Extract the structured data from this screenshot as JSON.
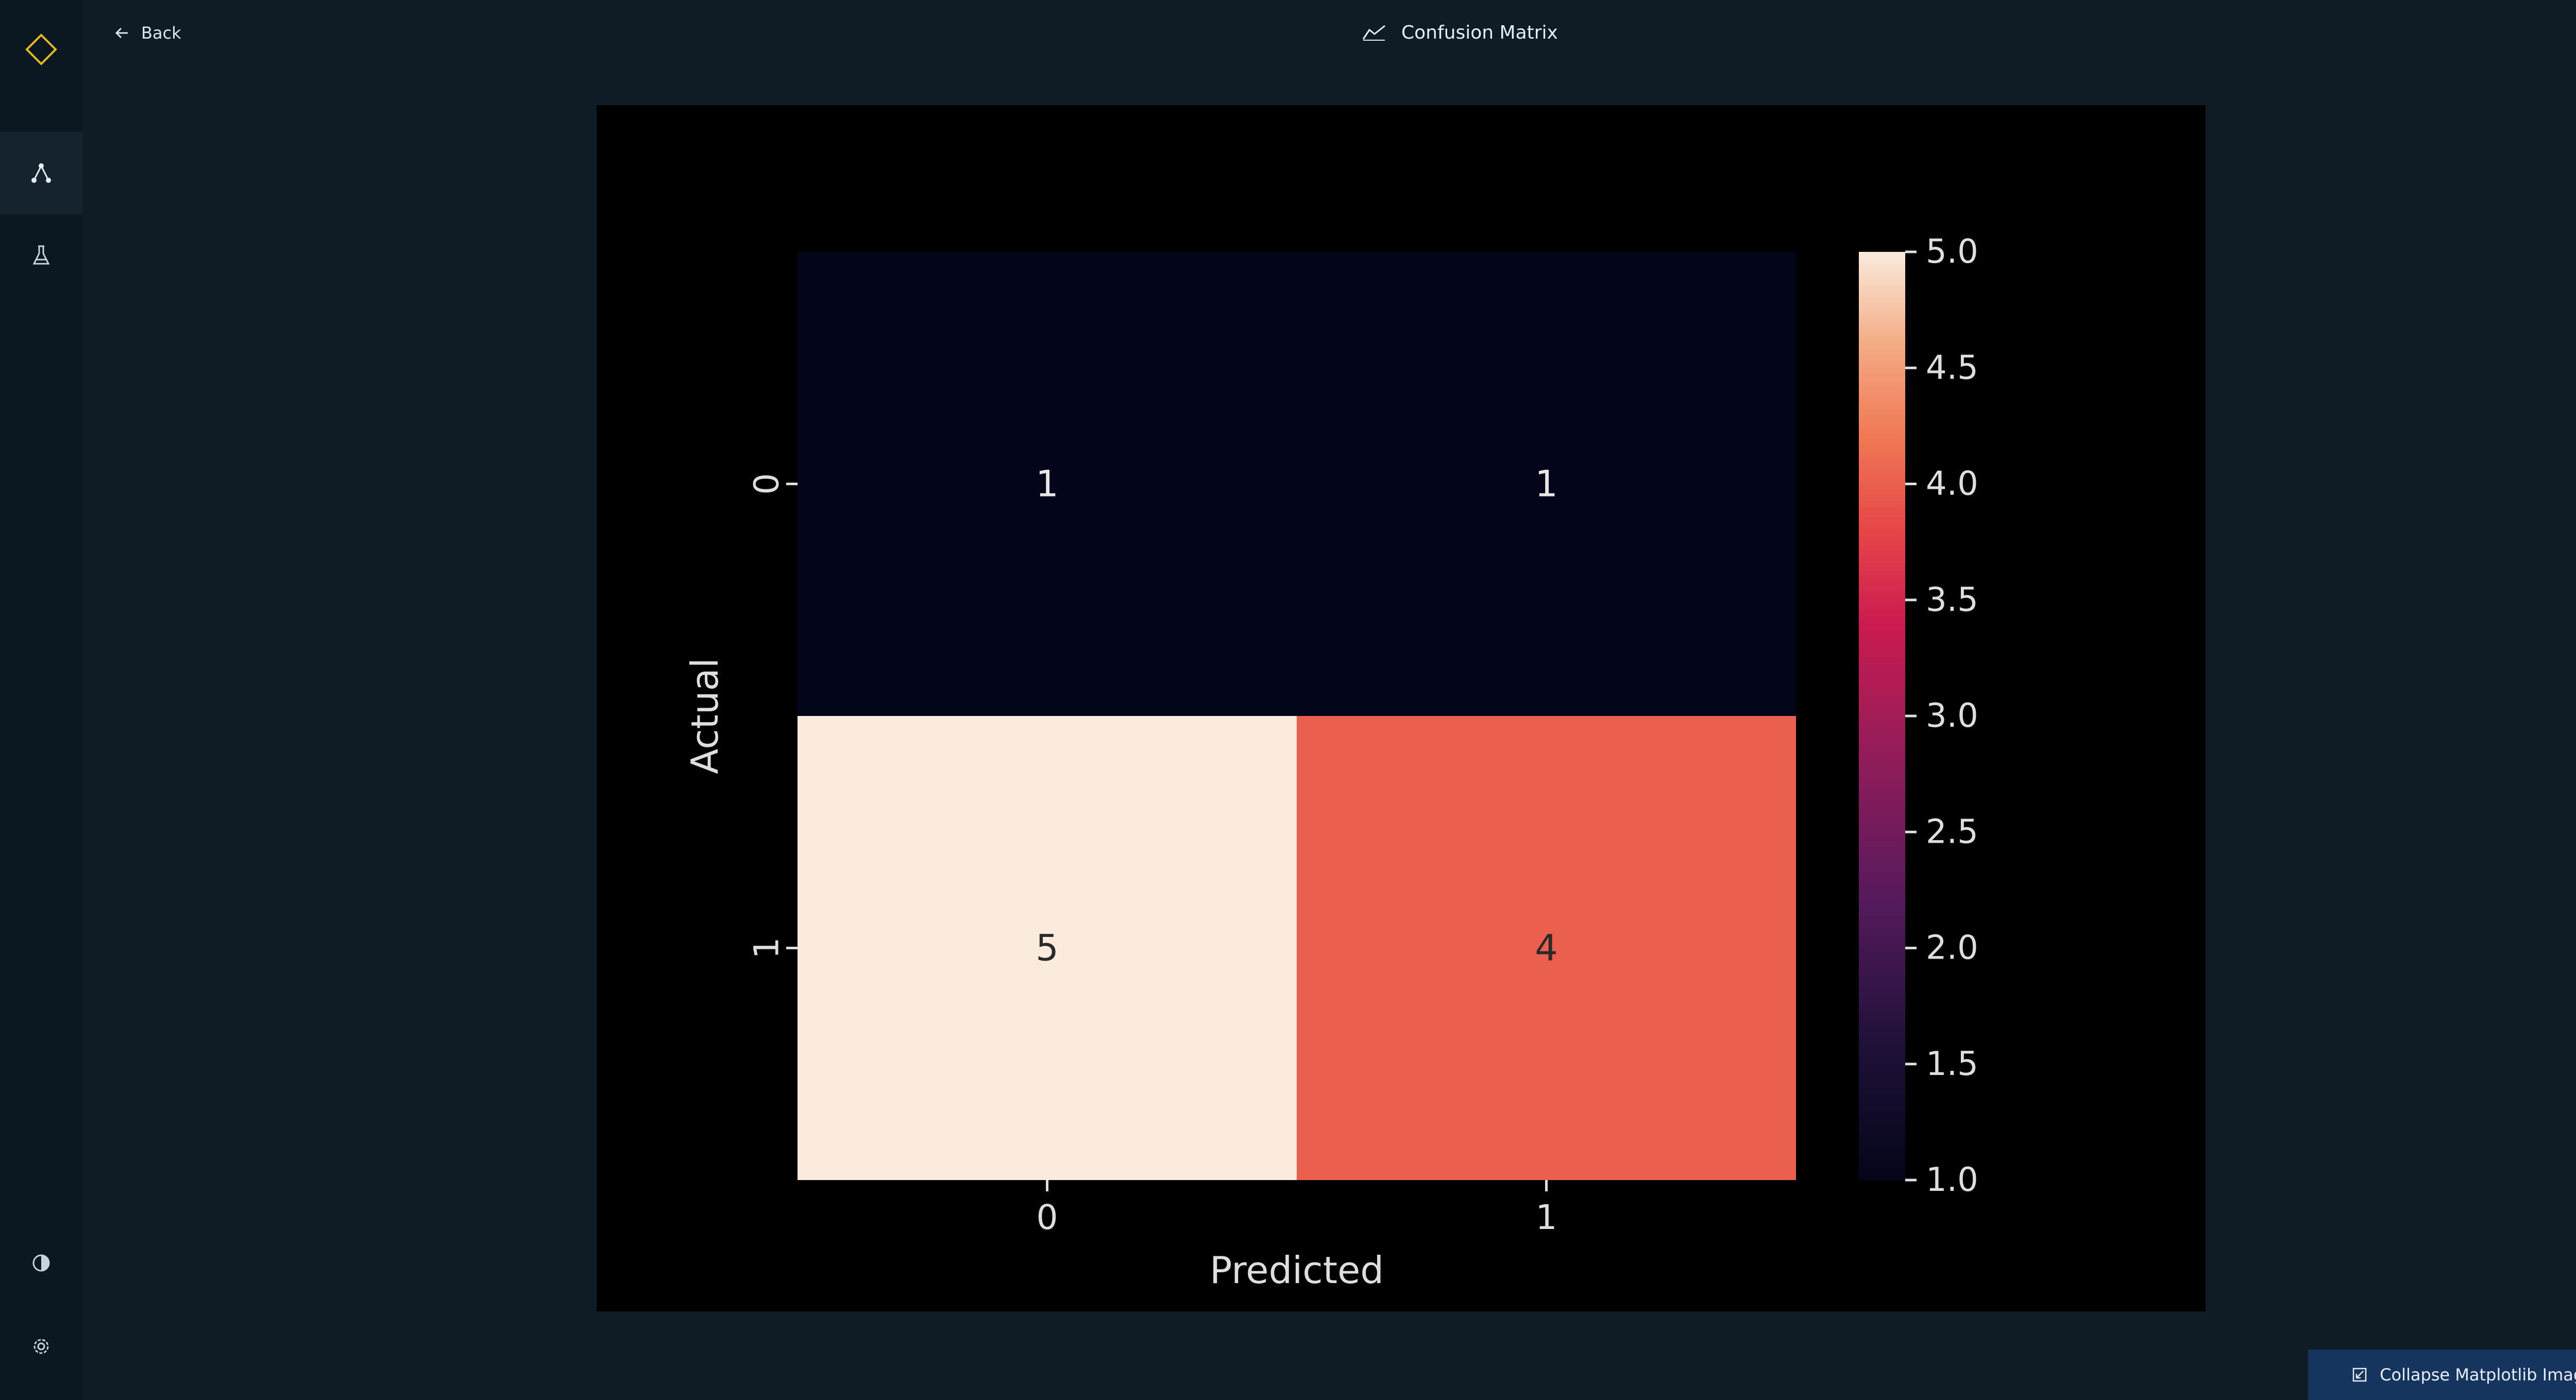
{
  "nav": {
    "back_label": "Back"
  },
  "header": {
    "title": "Confusion Matrix"
  },
  "footer": {
    "collapse_label": "Collapse Matplotlib Image"
  },
  "colors": {
    "background": "#0f1c26",
    "sidebar": "#0b1822",
    "logo_accent": "#e8b923",
    "collapse_button": "#15355e"
  },
  "icons": {
    "logo": "diamond-logo-icon",
    "nav1": "graph-nodes-icon",
    "nav2": "flask-icon",
    "theme": "contrast-icon",
    "settings": "settings-icon",
    "back": "arrow-left-icon",
    "title": "chart-line-icon",
    "collapse": "collapse-icon"
  },
  "chart_data": {
    "type": "heatmap",
    "title": "",
    "xlabel": "Predicted",
    "ylabel": "Actual",
    "x_categories": [
      "0",
      "1"
    ],
    "y_categories": [
      "0",
      "1"
    ],
    "values": [
      [
        1,
        1
      ],
      [
        5,
        4
      ]
    ],
    "annotations": [
      "1",
      "1",
      "5",
      "4"
    ],
    "colorbar": {
      "min": 1.0,
      "max": 5.0,
      "ticks": [
        "1.0",
        "1.5",
        "2.0",
        "2.5",
        "3.0",
        "3.5",
        "4.0",
        "4.5",
        "5.0"
      ],
      "colormap": "rocket"
    }
  }
}
